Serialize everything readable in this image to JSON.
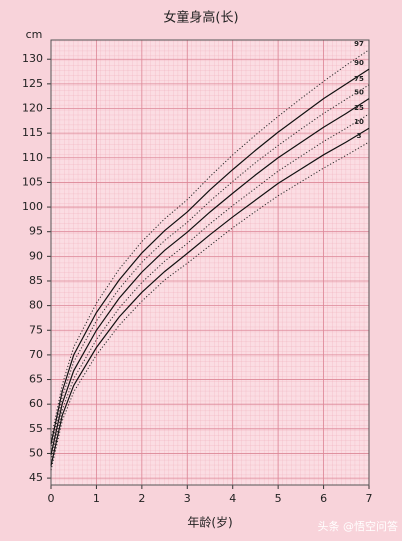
{
  "chart_data": {
    "type": "line",
    "title": "女童身高(长)",
    "y_label": "cm",
    "x_label": "年龄(岁)",
    "watermark": "头条 @悟空问答",
    "x": [
      0,
      0.25,
      0.5,
      1,
      1.5,
      2,
      2.5,
      3,
      3.5,
      4,
      4.5,
      5,
      5.5,
      6,
      6.5,
      7
    ],
    "series": [
      {
        "name": "97",
        "color": "#2a2a2a",
        "style": "dotted",
        "values": [
          53.0,
          64.0,
          71.6,
          80.5,
          87.4,
          93.0,
          97.6,
          101.5,
          106.2,
          110.6,
          114.6,
          118.4,
          122.0,
          125.5,
          128.8,
          131.9
        ]
      },
      {
        "name": "90",
        "color": "#111111",
        "style": "solid",
        "values": [
          51.9,
          62.7,
          70.0,
          78.6,
          85.2,
          90.7,
          95.2,
          99.0,
          103.5,
          107.6,
          111.5,
          115.2,
          118.6,
          122.0,
          125.0,
          128.0
        ]
      },
      {
        "name": "75",
        "color": "#2a2a2a",
        "style": "dotted",
        "values": [
          50.9,
          61.5,
          68.6,
          76.9,
          83.4,
          88.8,
          93.2,
          96.9,
          101.2,
          105.2,
          109.0,
          112.5,
          115.8,
          119.0,
          121.9,
          124.8
        ]
      },
      {
        "name": "50",
        "color": "#111111",
        "style": "solid",
        "values": [
          49.7,
          60.2,
          66.8,
          75.0,
          81.5,
          86.8,
          91.2,
          94.9,
          99.0,
          102.8,
          106.5,
          110.0,
          113.1,
          116.2,
          119.0,
          122.0
        ]
      },
      {
        "name": "25",
        "color": "#2a2a2a",
        "style": "dotted",
        "values": [
          48.6,
          58.9,
          65.2,
          73.1,
          79.5,
          84.7,
          89.0,
          92.6,
          96.6,
          100.3,
          103.8,
          107.3,
          110.3,
          113.3,
          116.0,
          118.9
        ]
      },
      {
        "name": "10",
        "color": "#111111",
        "style": "solid",
        "values": [
          47.5,
          57.8,
          63.8,
          71.5,
          77.7,
          82.7,
          86.9,
          90.6,
          94.4,
          98.0,
          101.4,
          104.8,
          107.7,
          110.6,
          113.2,
          116.0
        ]
      },
      {
        "name": "3",
        "color": "#2a2a2a",
        "style": "dotted",
        "values": [
          46.6,
          56.7,
          62.5,
          70.0,
          76.0,
          80.9,
          85.2,
          88.6,
          92.2,
          95.8,
          99.1,
          102.3,
          105.1,
          107.9,
          110.5,
          113.2
        ]
      }
    ],
    "xlim": [
      0,
      7
    ],
    "xticks": [
      0,
      1,
      2,
      3,
      4,
      5,
      6,
      7
    ],
    "ylim": [
      43.6,
      133.9
    ],
    "yticks": [
      45,
      50,
      55,
      60,
      65,
      70,
      75,
      80,
      85,
      90,
      95,
      100,
      105,
      110,
      115,
      120,
      125,
      130
    ],
    "grid": true
  }
}
